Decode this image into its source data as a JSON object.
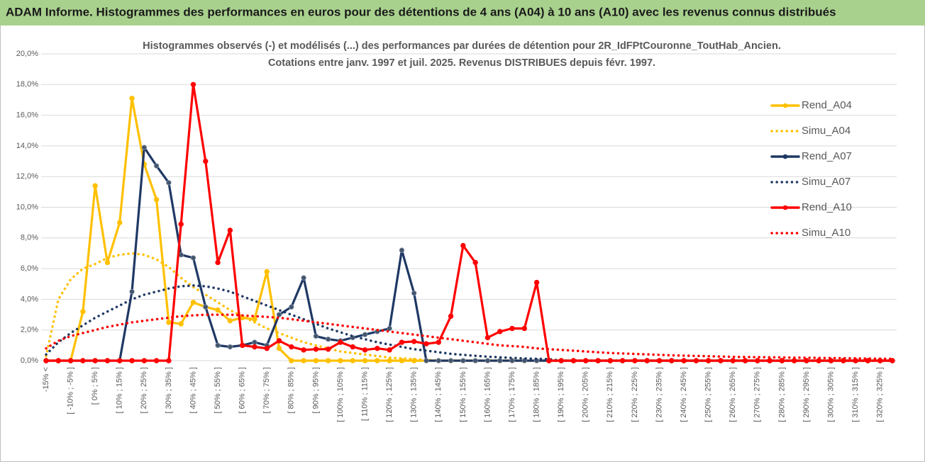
{
  "header": {
    "title": "ADAM Informe. Histogrammes des performances en euros pour des détentions de 4 ans (A04) à 10 ans (A10) avec les revenus connus distribués"
  },
  "chart_data": {
    "type": "line",
    "title": "Histogrammes observés (-) et modélisés (...) des performances par durées de détention pour 2R_IdFPtCouronne_ToutHab_Ancien.",
    "subtitle": "Cotations entre janv. 1997 et juil. 2025. Revenus DISTRIBUES depuis févr. 1997.",
    "categories": [
      "-15% <",
      null,
      "[ -10% ; -5% ]",
      null,
      "[ 0% ; 5% ]",
      null,
      "[ 10% ; 15% ]",
      null,
      "[ 20% ; 25% ]",
      null,
      "[ 30% ; 35% ]",
      null,
      "[ 40% ; 45% ]",
      null,
      "[ 50% ; 55% ]",
      null,
      "[ 60% ; 65% ]",
      null,
      "[ 70% ; 75% ]",
      null,
      "[ 80% ; 85% ]",
      null,
      "[ 90% ; 95% ]",
      null,
      "[ 100% ; 105% ]",
      null,
      "[ 110% ; 115% ]",
      null,
      "[ 120% ; 125% ]",
      null,
      "[ 130% ; 135% ]",
      null,
      "[ 140% ; 145% ]",
      null,
      "[ 150% ; 155% ]",
      null,
      "[ 160% ; 165% ]",
      null,
      "[ 170% ; 175% ]",
      null,
      "[ 180% ; 185% ]",
      null,
      "[ 190% ; 195% ]",
      null,
      "[ 200% ; 205% ]",
      null,
      "[ 210% ; 215% ]",
      null,
      "[ 220% ; 225% ]",
      null,
      "[ 230% ; 235% ]",
      null,
      "[ 240% ; 245% ]",
      null,
      "[ 250% ; 255% ]",
      null,
      "[ 260% ; 265% ]",
      null,
      "[ 270% ; 275% ]",
      null,
      "[ 280% ; 285% ]",
      null,
      "[ 290% ; 295% ]",
      null,
      "[ 300% ; 305% ]",
      null,
      "[ 310% ; 315% ]",
      null,
      "[ 320% ; 325% ]",
      null
    ],
    "series": [
      {
        "name": "Rend_A04",
        "color": "#ffc000",
        "style": "solid",
        "markers": true,
        "values": [
          0,
          0,
          0,
          3.2,
          11.4,
          6.4,
          9.0,
          17.1,
          12.8,
          10.5,
          2.5,
          2.4,
          3.8,
          3.5,
          3.3,
          2.6,
          2.8,
          2.7,
          5.8,
          0.8,
          0,
          0,
          0,
          0,
          0,
          0,
          0,
          0,
          0,
          0,
          0,
          0,
          0,
          0,
          0,
          0,
          0,
          0,
          0,
          0,
          0,
          0,
          0,
          0,
          0,
          0,
          0,
          0,
          0,
          0,
          0,
          0,
          0,
          0,
          0,
          0,
          0,
          0,
          0,
          0,
          0,
          0,
          0,
          0,
          0,
          0,
          0,
          0,
          0,
          0
        ]
      },
      {
        "name": "Simu_A04",
        "color": "#ffc000",
        "style": "dotted",
        "markers": false,
        "values": [
          0.3,
          4.0,
          5.3,
          6.0,
          6.3,
          6.7,
          6.9,
          7.0,
          6.9,
          6.6,
          6.1,
          5.4,
          4.8,
          4.3,
          3.8,
          3.3,
          2.9,
          2.5,
          2.1,
          1.8,
          1.5,
          1.2,
          1.0,
          0.8,
          0.6,
          0.5,
          0.4,
          0.3,
          0.2,
          0.15,
          0.1,
          0.05,
          0,
          0,
          0,
          0,
          0,
          0,
          0,
          0,
          0,
          0,
          0,
          0,
          0,
          0,
          0,
          0,
          0,
          0,
          0,
          0,
          0,
          0,
          0,
          0,
          0,
          0,
          0,
          0,
          0,
          0,
          0,
          0,
          0,
          0,
          0,
          0,
          0,
          0
        ]
      },
      {
        "name": "Rend_A07",
        "color": "#1f3864",
        "style": "solid",
        "markers": true,
        "values": [
          0,
          0,
          0,
          0,
          0,
          0,
          0,
          4.5,
          13.9,
          12.7,
          11.6,
          6.9,
          6.7,
          3.5,
          1.0,
          0.9,
          1.0,
          1.2,
          1.0,
          3.0,
          3.5,
          5.4,
          1.6,
          1.4,
          1.3,
          1.5,
          1.7,
          1.9,
          2.1,
          7.2,
          4.4,
          0,
          0,
          0,
          0,
          0,
          0,
          0,
          0,
          0,
          0,
          0,
          0,
          0,
          0,
          0,
          0,
          0,
          0,
          0,
          0,
          0,
          0,
          0,
          0,
          0,
          0,
          0,
          0,
          0,
          0,
          0,
          0,
          0,
          0,
          0,
          0,
          0,
          0,
          0
        ]
      },
      {
        "name": "Simu_A07",
        "color": "#1f3864",
        "style": "dotted",
        "markers": false,
        "values": [
          0.4,
          1.2,
          1.8,
          2.3,
          2.8,
          3.2,
          3.6,
          4.0,
          4.3,
          4.5,
          4.7,
          4.85,
          4.9,
          4.85,
          4.7,
          4.5,
          4.2,
          3.9,
          3.6,
          3.3,
          3.0,
          2.7,
          2.4,
          2.1,
          1.85,
          1.6,
          1.4,
          1.2,
          1.05,
          0.9,
          0.75,
          0.65,
          0.55,
          0.45,
          0.38,
          0.32,
          0.26,
          0.22,
          0.18,
          0.15,
          0.12,
          0.1,
          0,
          0,
          0,
          0,
          0,
          0,
          0,
          0,
          0,
          0,
          0,
          0,
          0,
          0,
          0,
          0,
          0,
          0,
          0,
          0,
          0,
          0,
          0,
          0,
          0,
          0,
          0,
          0
        ]
      },
      {
        "name": "Rend_A10",
        "color": "#ff0000",
        "style": "solid",
        "markers": true,
        "values": [
          0,
          0,
          0,
          0,
          0,
          0,
          0,
          0,
          0,
          0,
          0,
          8.9,
          18.0,
          13.0,
          6.4,
          8.5,
          1.0,
          0.9,
          0.8,
          1.3,
          0.9,
          0.7,
          0.75,
          0.75,
          1.2,
          0.9,
          0.7,
          0.8,
          0.7,
          1.2,
          1.25,
          1.1,
          1.2,
          2.9,
          7.5,
          6.4,
          1.5,
          1.9,
          2.1,
          2.1,
          5.1,
          0,
          0,
          0,
          0,
          0,
          0,
          0,
          0,
          0,
          0,
          0,
          0,
          0,
          0,
          0,
          0,
          0,
          0,
          0,
          0,
          0,
          0,
          0,
          0,
          0,
          0,
          0,
          0,
          0
        ]
      },
      {
        "name": "Simu_A10",
        "color": "#ff0000",
        "style": "dotted",
        "markers": false,
        "values": [
          0.8,
          1.3,
          1.6,
          1.8,
          2.0,
          2.2,
          2.35,
          2.5,
          2.6,
          2.7,
          2.8,
          2.9,
          2.95,
          3.0,
          3.0,
          3.0,
          2.95,
          2.9,
          2.85,
          2.8,
          2.7,
          2.6,
          2.5,
          2.4,
          2.3,
          2.2,
          2.1,
          2.0,
          1.9,
          1.8,
          1.7,
          1.6,
          1.5,
          1.4,
          1.3,
          1.2,
          1.1,
          1.0,
          0.95,
          0.9,
          0.8,
          0.75,
          0.7,
          0.65,
          0.6,
          0.55,
          0.5,
          0.47,
          0.44,
          0.41,
          0.38,
          0.35,
          0.33,
          0.31,
          0.29,
          0.27,
          0.25,
          0.24,
          0.23,
          0.22,
          0.21,
          0.2,
          0.19,
          0.18,
          0.17,
          0.16,
          0.15,
          0.14,
          0.13,
          0.12
        ]
      }
    ],
    "ylim": [
      0,
      20
    ],
    "yticks": [
      {
        "value": 0,
        "label": "0,0%"
      },
      {
        "value": 2,
        "label": "2,0%"
      },
      {
        "value": 4,
        "label": "4,0%"
      },
      {
        "value": 6,
        "label": "6,0%"
      },
      {
        "value": 8,
        "label": "8,0%"
      },
      {
        "value": 10,
        "label": "10,0%"
      },
      {
        "value": 12,
        "label": "12,0%"
      },
      {
        "value": 14,
        "label": "14,0%"
      },
      {
        "value": 16,
        "label": "16,0%"
      },
      {
        "value": 18,
        "label": "18,0%"
      },
      {
        "value": 20,
        "label": "20,0%"
      }
    ],
    "grid": true,
    "legend": "right"
  }
}
